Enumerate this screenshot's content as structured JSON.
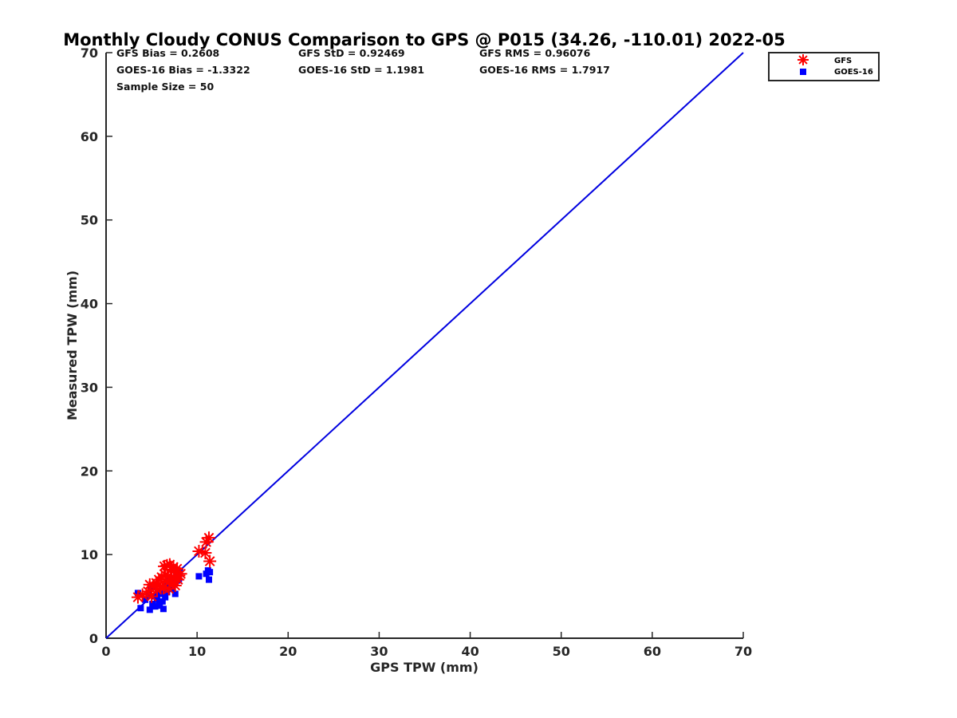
{
  "chart_data": {
    "type": "scatter",
    "title": "Monthly Cloudy CONUS Comparison to GPS @ P015 (34.26, -110.01) 2022-05",
    "xlabel": "GPS TPW (mm)",
    "ylabel": "Measured TPW (mm)",
    "xlim": [
      0,
      70
    ],
    "ylim": [
      0,
      70
    ],
    "xticks": [
      "0",
      "10",
      "20",
      "30",
      "40",
      "50",
      "60",
      "70"
    ],
    "yticks": [
      "0",
      "10",
      "20",
      "30",
      "40",
      "50",
      "60",
      "70"
    ],
    "grid": false,
    "legend_position": "outside-top-right",
    "stats": {
      "gfs_bias": "GFS Bias = 0.2608",
      "goes_bias": "GOES-16 Bias = -1.3322",
      "sample_size": "Sample Size = 50",
      "gfs_std": "GFS StD = 0.92469",
      "goes_std": "GOES-16 StD = 1.1981",
      "gfs_rms": "GFS RMS = 0.96076",
      "goes_rms": "GOES-16 RMS = 1.7917"
    },
    "reference_line": {
      "x": [
        0,
        70
      ],
      "y": [
        0,
        70
      ],
      "color": "#0000e0"
    },
    "series": [
      {
        "name": "GFS",
        "marker": "asterisk",
        "color": "#ff0000",
        "points": [
          [
            3.5,
            4.9
          ],
          [
            4.0,
            5.2
          ],
          [
            4.6,
            5.6
          ],
          [
            4.8,
            6.4
          ],
          [
            5.0,
            5.0
          ],
          [
            5.2,
            6.3
          ],
          [
            5.5,
            6.6
          ],
          [
            5.6,
            5.8
          ],
          [
            5.8,
            7.0
          ],
          [
            6.0,
            6.2
          ],
          [
            6.1,
            7.3
          ],
          [
            6.3,
            6.0
          ],
          [
            6.4,
            8.6
          ],
          [
            6.5,
            7.6
          ],
          [
            6.6,
            6.8
          ],
          [
            6.7,
            8.7
          ],
          [
            6.8,
            7.4
          ],
          [
            6.9,
            5.9
          ],
          [
            7.0,
            8.8
          ],
          [
            7.1,
            7.0
          ],
          [
            7.2,
            8.2
          ],
          [
            7.3,
            6.6
          ],
          [
            7.4,
            8.5
          ],
          [
            7.5,
            7.2
          ],
          [
            7.6,
            6.3
          ],
          [
            7.7,
            7.9
          ],
          [
            7.8,
            8.3
          ],
          [
            7.9,
            7.0
          ],
          [
            8.0,
            7.5
          ],
          [
            8.2,
            7.7
          ],
          [
            10.2,
            10.4
          ],
          [
            10.9,
            10.2
          ],
          [
            11.0,
            11.5
          ],
          [
            11.3,
            12.0
          ],
          [
            11.4,
            9.2
          ]
        ]
      },
      {
        "name": "GOES-16",
        "marker": "square",
        "color": "#0000ff",
        "points": [
          [
            3.5,
            5.4
          ],
          [
            3.8,
            3.6
          ],
          [
            4.3,
            4.6
          ],
          [
            4.7,
            5.2
          ],
          [
            4.8,
            3.4
          ],
          [
            5.0,
            6.1
          ],
          [
            5.1,
            4.1
          ],
          [
            5.3,
            5.0
          ],
          [
            5.4,
            3.8
          ],
          [
            5.6,
            4.7
          ],
          [
            5.7,
            5.6
          ],
          [
            5.8,
            4.2
          ],
          [
            5.9,
            3.9
          ],
          [
            6.0,
            5.3
          ],
          [
            6.1,
            6.0
          ],
          [
            6.2,
            4.4
          ],
          [
            6.3,
            3.5
          ],
          [
            6.4,
            5.8
          ],
          [
            6.5,
            4.9
          ],
          [
            6.6,
            6.4
          ],
          [
            6.7,
            5.5
          ],
          [
            6.8,
            6.7
          ],
          [
            6.9,
            6.1
          ],
          [
            7.0,
            7.0
          ],
          [
            7.1,
            6.3
          ],
          [
            7.2,
            5.9
          ],
          [
            7.3,
            6.8
          ],
          [
            7.4,
            7.2
          ],
          [
            7.5,
            6.5
          ],
          [
            7.6,
            5.3
          ],
          [
            7.7,
            7.5
          ],
          [
            7.8,
            6.9
          ],
          [
            7.9,
            7.8
          ],
          [
            8.0,
            7.1
          ],
          [
            8.1,
            8.0
          ],
          [
            10.2,
            7.4
          ],
          [
            11.0,
            7.7
          ],
          [
            11.2,
            8.1
          ],
          [
            11.3,
            7.0
          ],
          [
            11.4,
            7.9
          ]
        ]
      }
    ]
  }
}
